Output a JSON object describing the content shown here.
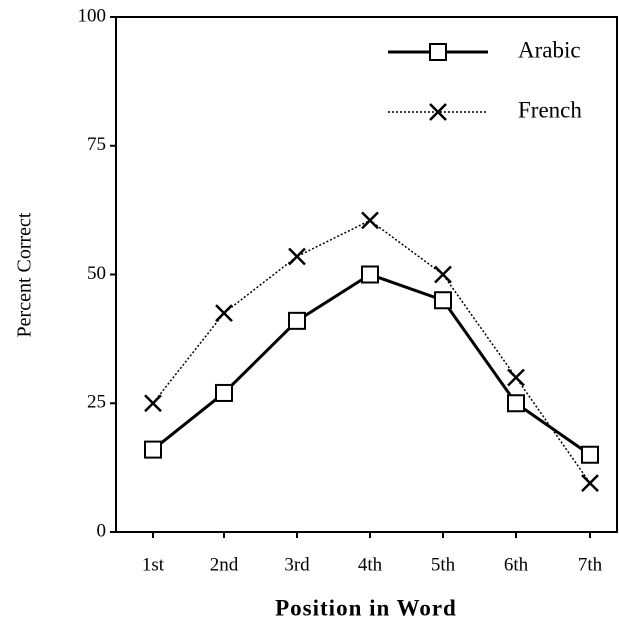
{
  "chart_data": {
    "type": "line",
    "xlabel": "Position in Word",
    "ylabel": "Percent Correct",
    "categories": [
      "1st",
      "2nd",
      "3rd",
      "4th",
      "5th",
      "6th",
      "7th"
    ],
    "series": [
      {
        "name": "Arabic",
        "color": "#000000",
        "marker": "square",
        "dash": "solid",
        "values": [
          16,
          27,
          41,
          50,
          45,
          25,
          15
        ]
      },
      {
        "name": "French",
        "color": "#000000",
        "marker": "x",
        "dash": "dotted",
        "values": [
          25,
          42.5,
          53.5,
          60.5,
          50,
          30,
          9.5
        ]
      }
    ],
    "ylim": [
      0,
      100
    ],
    "yticks": [
      0,
      25,
      50,
      75,
      100
    ],
    "grid": false,
    "legend": "upper right"
  }
}
